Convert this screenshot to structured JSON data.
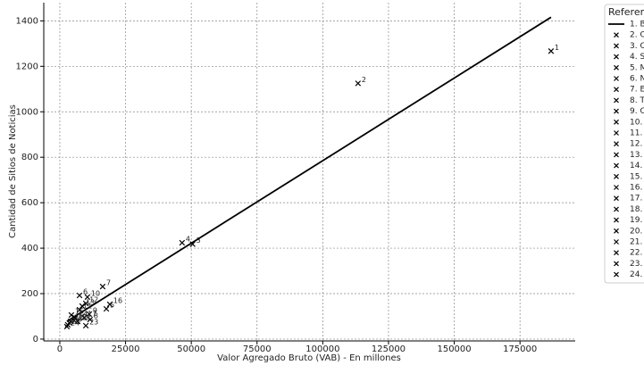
{
  "chart_data": {
    "type": "scatter",
    "xlabel": "Valor Agregado Bruto (VAB) - En millones",
    "ylabel": "Cantidad de Sitios de Noticias",
    "xlim": [
      -6100,
      196000
    ],
    "ylim": [
      -8,
      1480
    ],
    "xticks": [
      0,
      25000,
      50000,
      75000,
      100000,
      125000,
      150000,
      175000
    ],
    "yticks": [
      0,
      200,
      400,
      600,
      800,
      1000,
      1200,
      1400
    ],
    "grid": true,
    "points": {
      "color": "#000000",
      "x": [
        186800,
        113400,
        50500,
        46500,
        17700,
        7500,
        16300,
        11500,
        11200,
        10500,
        7500,
        9900,
        8500,
        5800,
        4400,
        19000,
        9200,
        6800,
        5400,
        3700,
        3000,
        4100,
        9900,
        2700
      ],
      "values": [
        1267,
        1125,
        418,
        424,
        133,
        192,
        231,
        86,
        110,
        185,
        129,
        157,
        145,
        94,
        106,
        153,
        94,
        78,
        82,
        71,
        63,
        78,
        59,
        55
      ],
      "point_labels": [
        "1",
        "2",
        "3",
        "4",
        "5",
        "6",
        "7",
        "8",
        "9",
        "10",
        "11",
        "12",
        "13",
        "14",
        "15",
        "16",
        "17",
        "18",
        "19",
        "20",
        "21",
        "22",
        "23",
        "24"
      ]
    },
    "trend": {
      "color": "#000000",
      "x": [
        2700,
        186800
      ],
      "values": [
        78,
        1416
      ]
    },
    "legend": {
      "title": "Referen",
      "entries": [
        "1. B",
        "2. C",
        "3. C",
        "4. S",
        "5. M",
        "6. N",
        "7. E",
        "8. T",
        "9. C",
        "10.",
        "11.",
        "12.",
        "13.",
        "14.",
        "15.",
        "16.",
        "17.",
        "18.",
        "19.",
        "20.",
        "21.",
        "22.",
        "23.",
        "24."
      ]
    }
  }
}
